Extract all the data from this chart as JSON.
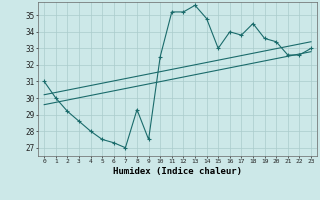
{
  "xlabel": "Humidex (Indice chaleur)",
  "ylabel": "",
  "bg_color": "#cce8e8",
  "line_color": "#1a6b6b",
  "grid_color": "#aacccc",
  "x_ticks": [
    0,
    1,
    2,
    3,
    4,
    5,
    6,
    7,
    8,
    9,
    10,
    11,
    12,
    13,
    14,
    15,
    16,
    17,
    18,
    19,
    20,
    21,
    22,
    23
  ],
  "y_ticks": [
    27,
    28,
    29,
    30,
    31,
    32,
    33,
    34,
    35
  ],
  "ylim": [
    26.5,
    35.8
  ],
  "xlim": [
    -0.5,
    23.5
  ],
  "curve1_x": [
    0,
    1,
    2,
    3,
    4,
    5,
    6,
    7,
    8,
    9,
    10,
    11,
    12,
    13,
    14,
    15,
    16,
    17,
    18,
    19,
    20,
    21,
    22,
    23
  ],
  "curve1_y": [
    31.0,
    30.0,
    29.2,
    28.6,
    28.0,
    27.5,
    27.3,
    27.0,
    29.3,
    27.5,
    32.5,
    35.2,
    35.2,
    35.6,
    34.8,
    33.0,
    34.0,
    33.8,
    34.5,
    33.6,
    33.4,
    32.6,
    32.6,
    33.0
  ],
  "line1_x": [
    0,
    23
  ],
  "line1_y": [
    29.6,
    32.8
  ],
  "line2_x": [
    0,
    23
  ],
  "line2_y": [
    30.2,
    33.4
  ]
}
